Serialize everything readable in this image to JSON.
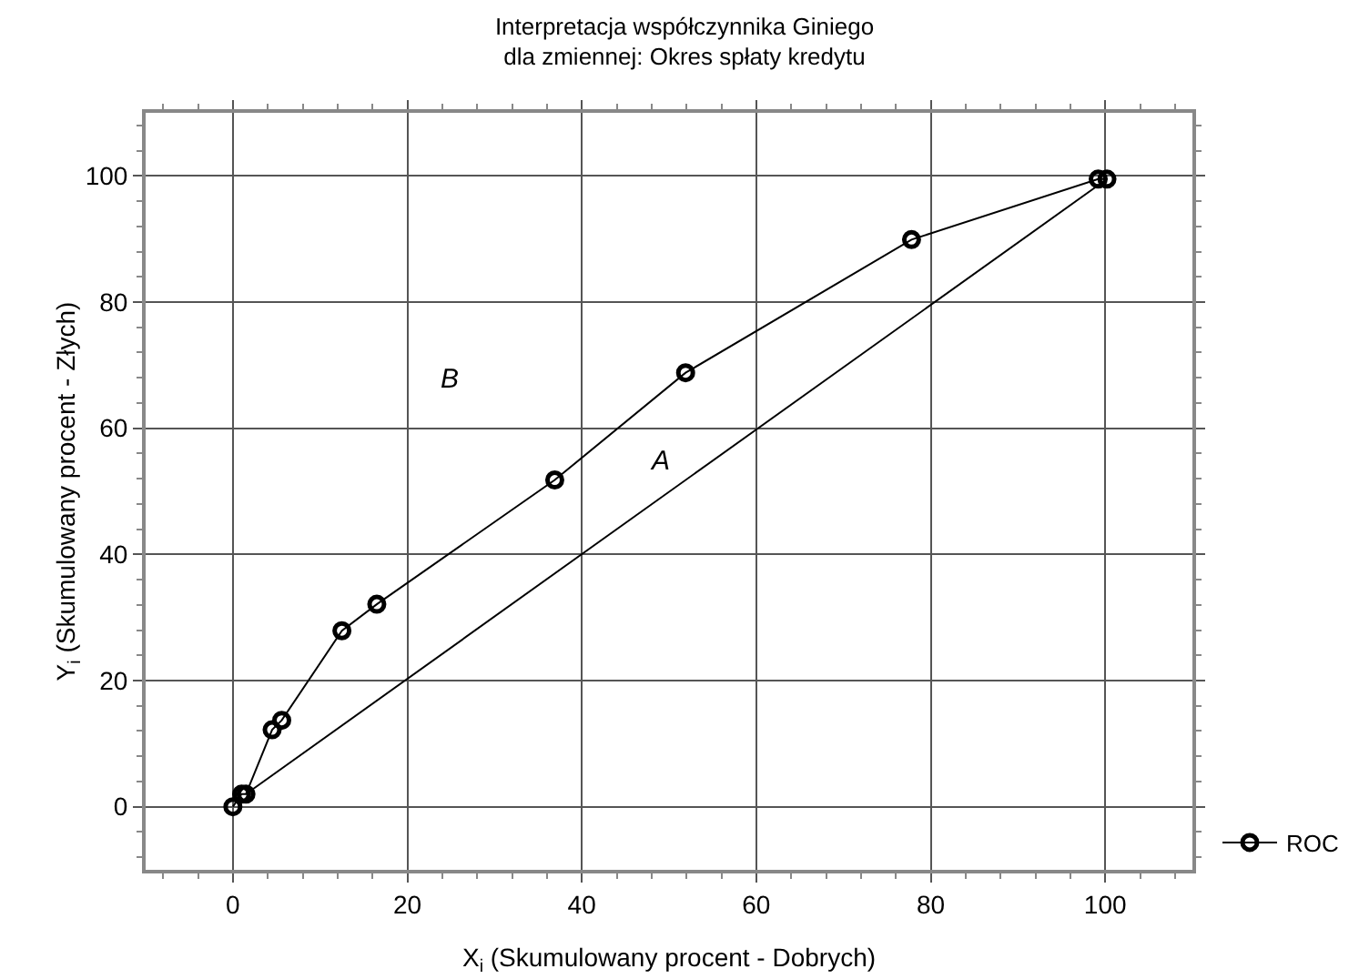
{
  "chart_data": {
    "type": "line",
    "title": "Interpretacja współczynnika Giniego\ndla zmiennej: Okres spłaty kredytu",
    "xlabel": "X$_{i}$ (Skumulowany procent - Dobrych)",
    "ylabel": "Y$_{i}$ (Skumulowany procent - Złych)",
    "series": [
      {
        "name": "ROC",
        "color": "#000000",
        "marker": "circle",
        "x": [
          0,
          1,
          1.5,
          4.5,
          5.6,
          12.5,
          16.5,
          36.9,
          51.9,
          77.8,
          99.2,
          100.2
        ],
        "values": [
          0,
          2,
          2,
          12.2,
          13.7,
          27.9,
          32.1,
          51.8,
          68.8,
          89.9,
          99.5,
          99.5
        ]
      },
      {
        "color": "#000000",
        "marker": "none",
        "x": [
          1.5,
          100.2
        ],
        "values": [
          2,
          99.5
        ]
      }
    ],
    "annotations": [
      "A",
      "B"
    ],
    "xlim": [
      -10,
      110
    ],
    "ylim": [
      -10,
      110
    ],
    "xticks": [
      0,
      20,
      40,
      60,
      80,
      100
    ],
    "yticks": [
      0,
      20,
      40,
      60,
      80,
      100
    ],
    "grid": true,
    "legend": "bottom right"
  }
}
